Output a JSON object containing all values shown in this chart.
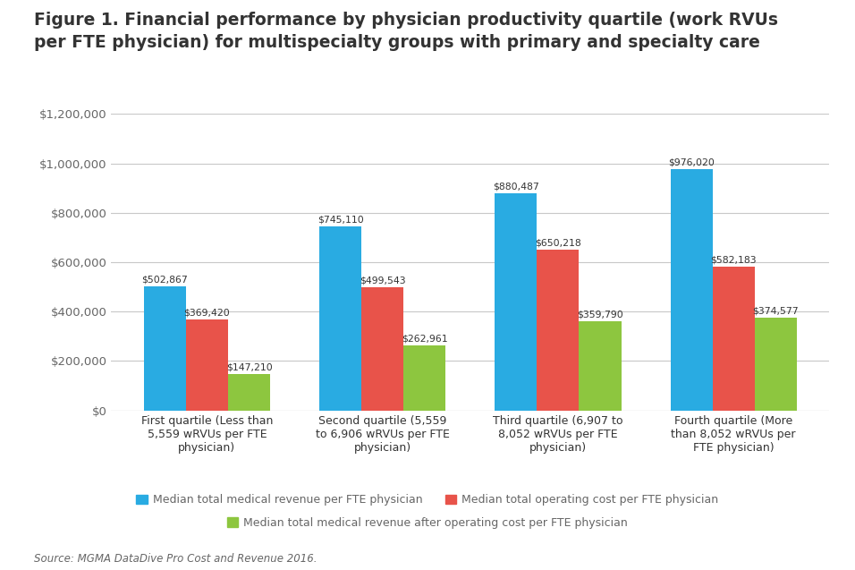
{
  "title_line1": "Figure 1. Financial performance by physician productivity quartile (work RVUs",
  "title_line2": "per FTE physician) for multispecialty groups with primary and specialty care",
  "categories": [
    "First quartile (Less than\n5,559 wRVUs per FTE\nphysician)",
    "Second quartile (5,559\nto 6,906 wRVUs per FTE\nphysician)",
    "Third quartile (6,907 to\n8,052 wRVUs per FTE\nphysician)",
    "Fourth quartile (More\nthan 8,052 wRVUs per\nFTE physician)"
  ],
  "revenue": [
    502867,
    745110,
    880487,
    976020
  ],
  "operating_cost": [
    369420,
    499543,
    650218,
    582183
  ],
  "net_revenue": [
    147210,
    262961,
    359790,
    374577
  ],
  "revenue_labels": [
    "$502,867",
    "$745,110",
    "$880,487",
    "$976,020"
  ],
  "operating_cost_labels": [
    "$369,420",
    "$499,543",
    "$650,218",
    "$582,183"
  ],
  "net_revenue_labels": [
    "$147,210",
    "$262,961",
    "$359,790",
    "$374,577"
  ],
  "bar_color_revenue": "#29ABE2",
  "bar_color_operating": "#E8534A",
  "bar_color_net": "#8DC63F",
  "ylim": [
    0,
    1200000
  ],
  "yticks": [
    0,
    200000,
    400000,
    600000,
    800000,
    1000000,
    1200000
  ],
  "ytick_labels": [
    "$0",
    "$200,000",
    "$400,000",
    "$600,000",
    "$800,000",
    "$1,000,000",
    "$1,200,000"
  ],
  "legend_revenue": "Median total medical revenue per FTE physician",
  "legend_operating": "Median total operating cost per FTE physician",
  "legend_net": "Median total medical revenue after operating cost per FTE physician",
  "source": "Source: MGMA DataDive Pro Cost and Revenue 2016.",
  "background_color": "#FFFFFF",
  "grid_color": "#C8C8C8",
  "text_color": "#666666",
  "title_color": "#333333",
  "bar_width": 0.24,
  "label_fontsize": 7.8,
  "tick_fontsize": 9.5,
  "cat_fontsize": 9.0,
  "title_fontsize": 13.5
}
